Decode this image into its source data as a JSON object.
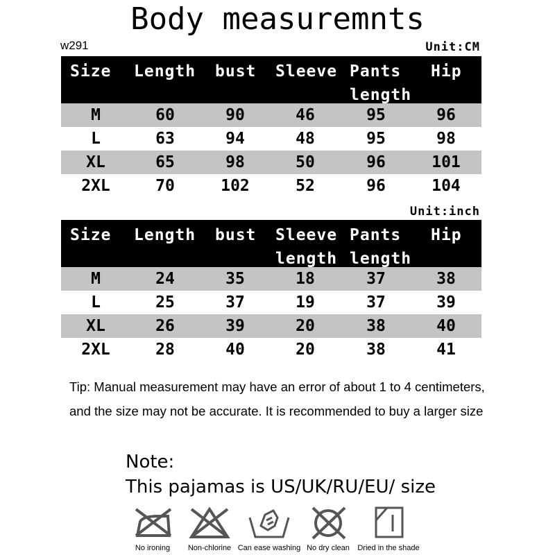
{
  "title": "Body measuremnts",
  "code": "w291",
  "columns_cm": [
    "Size",
    "Length",
    "bust",
    "Sleeve",
    "Pants\nlength",
    "Hip"
  ],
  "columns_inch": [
    "Size",
    "Length",
    "bust",
    "Sleeve\nlength",
    "Pants\nlength",
    "Hip"
  ],
  "table_cm": {
    "unit": "Unit:CM",
    "rows": [
      [
        "M",
        "60",
        "90",
        "46",
        "95",
        "96"
      ],
      [
        "L",
        "63",
        "94",
        "48",
        "95",
        "98"
      ],
      [
        "XL",
        "65",
        "98",
        "50",
        "96",
        "101"
      ],
      [
        "2XL",
        "70",
        "102",
        "52",
        "96",
        "104"
      ]
    ]
  },
  "table_inch": {
    "unit": "Unit:inch",
    "rows": [
      [
        "M",
        "24",
        "35",
        "18",
        "37",
        "38"
      ],
      [
        "L",
        "25",
        "37",
        "19",
        "37",
        "39"
      ],
      [
        "XL",
        "26",
        "39",
        "20",
        "38",
        "40"
      ],
      [
        "2XL",
        "28",
        "40",
        "20",
        "38",
        "41"
      ]
    ]
  },
  "tip": "Tip: Manual measurement may have an error of about 1 to 4 centimeters, and the size may not be accurate. It is recommended to buy a larger size",
  "note": {
    "label": "Note:",
    "text": "This pajamas is US/UK/RU/EU/ size"
  },
  "care": [
    {
      "icon": "no-ironing-icon",
      "label": "No ironing"
    },
    {
      "icon": "non-chlorine-icon",
      "label": "Non-chlorine"
    },
    {
      "icon": "hand-wash-icon",
      "label": "Can ease washing"
    },
    {
      "icon": "no-dry-clean-icon",
      "label": "No dry clean"
    },
    {
      "icon": "dry-in-shade-icon",
      "label": "Dried in the shade"
    }
  ],
  "colors": {
    "header_bg": "#000000",
    "stripe": "#c4c4c4",
    "icon": "#555555"
  }
}
